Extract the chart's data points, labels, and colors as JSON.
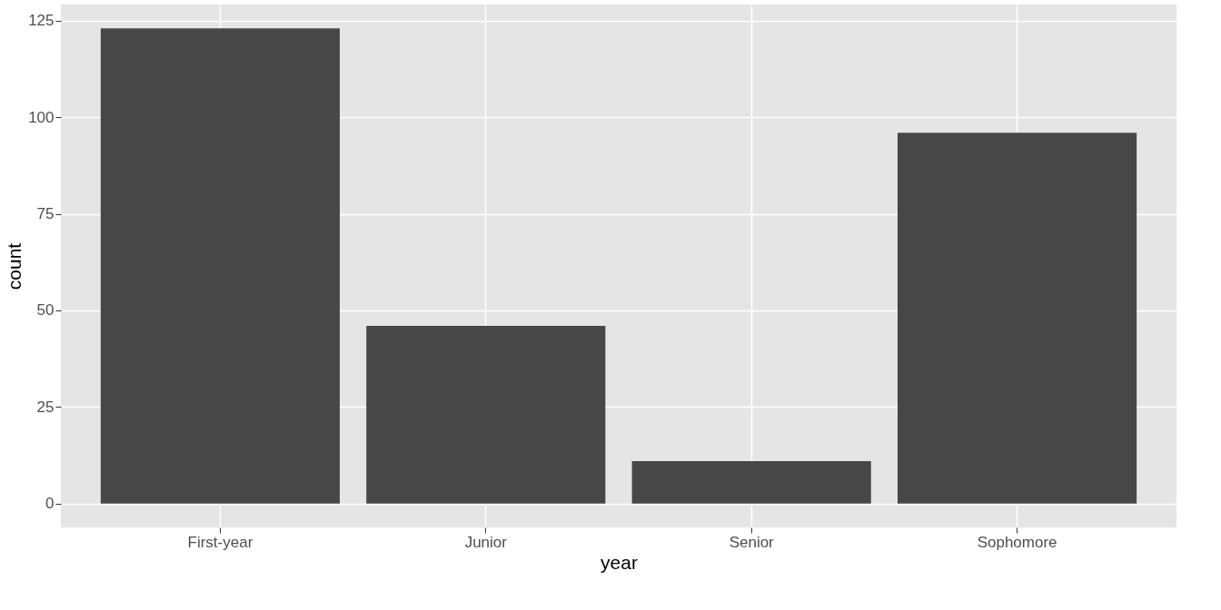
{
  "chart_data": {
    "type": "bar",
    "xlabel": "year",
    "ylabel": "count",
    "categories": [
      "First-year",
      "Junior",
      "Senior",
      "Sophomore"
    ],
    "values": [
      123,
      46,
      11,
      96
    ],
    "color": "#474747",
    "ylim": [
      -6.15,
      129.15
    ],
    "yticks": [
      0,
      25,
      50,
      75,
      100,
      125
    ],
    "grid": true
  }
}
